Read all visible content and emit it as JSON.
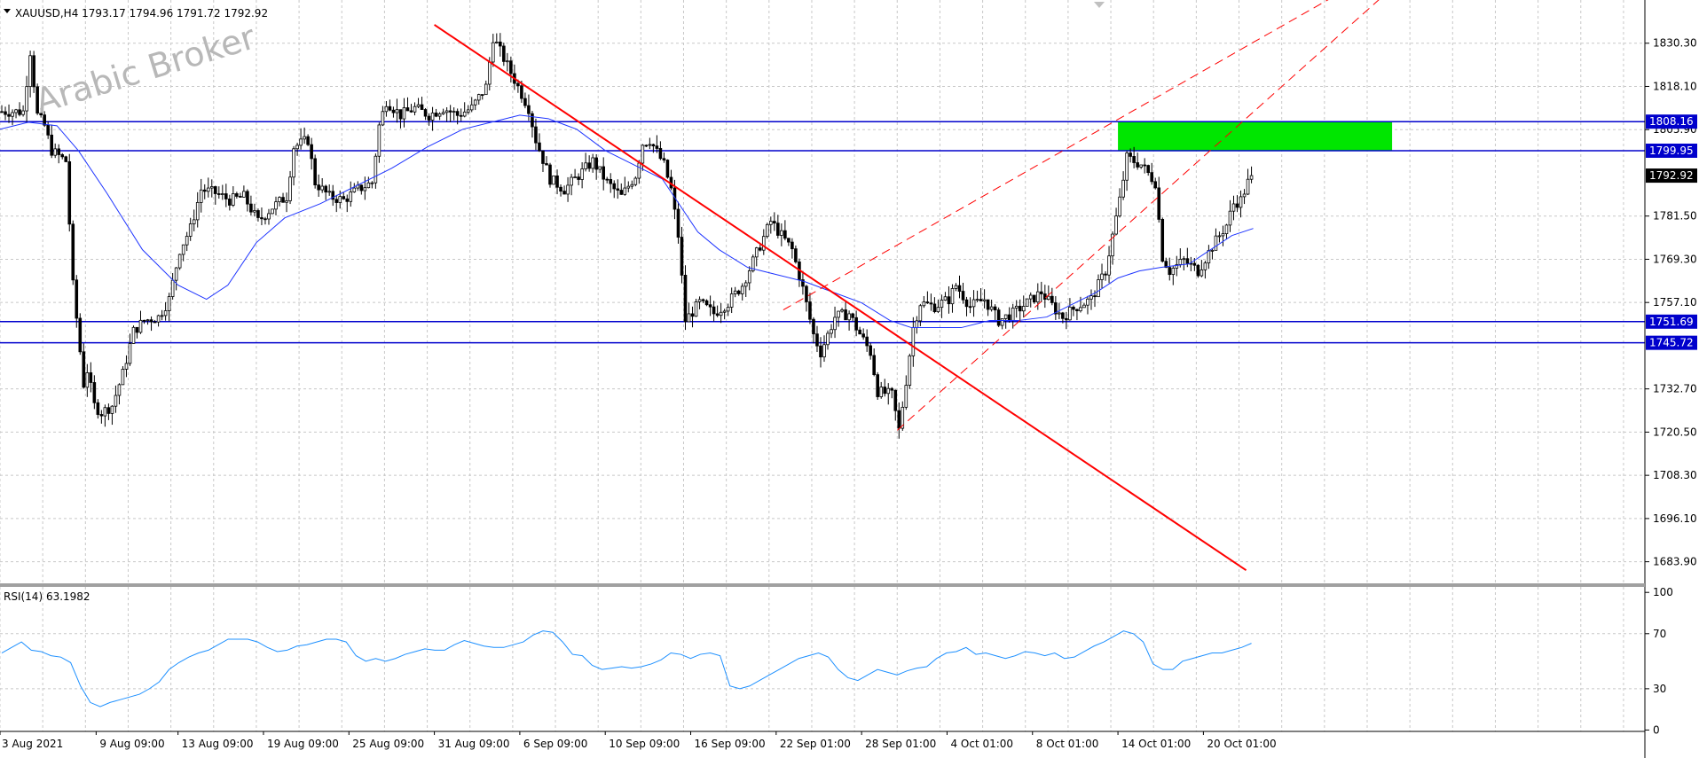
{
  "header": {
    "symbol_line": "XAUUSD,H4  1793.17 1794.96 1791.72 1792.92",
    "rsi_line": "RSI(14) 63.1982"
  },
  "watermark": "Arabic Broker",
  "colors": {
    "background": "#ffffff",
    "grid": "#c8c8c8",
    "candle": "#000000",
    "ma": "#1f35ff",
    "hline": "#0000cc",
    "trend": "#ff0000",
    "zone": "#00e600",
    "rsi": "#1e90ff",
    "label_bg": "#0000cc",
    "label_text": "#ffffff",
    "price_bg": "#000000",
    "price_text": "#ffffff"
  },
  "chart_data": [
    {
      "type": "candlestick",
      "title": "XAUUSD,H4",
      "ylim": [
        1677.8,
        1842.5
      ],
      "y_ticks": [
        "1830.30",
        "1818.10",
        "1805.90",
        "1781.50",
        "1769.30",
        "1757.10",
        "1732.70",
        "1720.50",
        "1708.30",
        "1696.10",
        "1683.90"
      ],
      "x_tick_labels": [
        "3 Aug 2021",
        "9 Aug 09:00",
        "13 Aug 09:00",
        "19 Aug 09:00",
        "25 Aug 09:00",
        "31 Aug 09:00",
        "6 Sep 09:00",
        "10 Sep 09:00",
        "16 Sep 09:00",
        "22 Sep 01:00",
        "28 Sep 01:00",
        "4 Oct 01:00",
        "8 Oct 01:00",
        "14 Oct 01:00",
        "20 Oct 01:00"
      ],
      "x_tick_bars": [
        0,
        27,
        50,
        74,
        98,
        122,
        146,
        170,
        194,
        218,
        242,
        266,
        290,
        314,
        338
      ],
      "bar_count_total": 462,
      "last_bar_index": 351,
      "price_path": [
        [
          0,
          1811
        ],
        [
          6,
          1811
        ],
        [
          8,
          1828
        ],
        [
          10,
          1810
        ],
        [
          12,
          1807
        ],
        [
          14,
          1800
        ],
        [
          18,
          1797
        ],
        [
          20,
          1762
        ],
        [
          23,
          1734
        ],
        [
          24,
          1738
        ],
        [
          26,
          1728
        ],
        [
          28,
          1726
        ],
        [
          31,
          1728
        ],
        [
          34,
          1737
        ],
        [
          37,
          1749
        ],
        [
          40,
          1752
        ],
        [
          44,
          1753
        ],
        [
          47,
          1758
        ],
        [
          50,
          1772
        ],
        [
          53,
          1778
        ],
        [
          56,
          1789
        ],
        [
          60,
          1788
        ],
        [
          64,
          1786
        ],
        [
          68,
          1787
        ],
        [
          72,
          1780
        ],
        [
          76,
          1784
        ],
        [
          80,
          1787
        ],
        [
          82,
          1801
        ],
        [
          86,
          1803
        ],
        [
          88,
          1791
        ],
        [
          92,
          1787
        ],
        [
          96,
          1786
        ],
        [
          100,
          1789
        ],
        [
          104,
          1791
        ],
        [
          106,
          1807
        ],
        [
          108,
          1814
        ],
        [
          112,
          1810
        ],
        [
          116,
          1812
        ],
        [
          120,
          1810
        ],
        [
          124,
          1812
        ],
        [
          128,
          1810
        ],
        [
          132,
          1812
        ],
        [
          136,
          1818
        ],
        [
          138,
          1832
        ],
        [
          141,
          1826
        ],
        [
          145,
          1818
        ],
        [
          148,
          1812
        ],
        [
          150,
          1803
        ],
        [
          154,
          1792
        ],
        [
          158,
          1789
        ],
        [
          162,
          1793
        ],
        [
          166,
          1797
        ],
        [
          170,
          1791
        ],
        [
          174,
          1787
        ],
        [
          178,
          1793
        ],
        [
          180,
          1802
        ],
        [
          182,
          1803
        ],
        [
          186,
          1796
        ],
        [
          188,
          1789
        ],
        [
          190,
          1776
        ],
        [
          192,
          1752
        ],
        [
          196,
          1757
        ],
        [
          200,
          1754
        ],
        [
          204,
          1757
        ],
        [
          208,
          1762
        ],
        [
          212,
          1771
        ],
        [
          216,
          1780
        ],
        [
          219,
          1776
        ],
        [
          222,
          1772
        ],
        [
          225,
          1761
        ],
        [
          228,
          1748
        ],
        [
          230,
          1743
        ],
        [
          234,
          1753
        ],
        [
          238,
          1754
        ],
        [
          240,
          1750
        ],
        [
          244,
          1743
        ],
        [
          246,
          1732
        ],
        [
          250,
          1731
        ],
        [
          252,
          1721
        ],
        [
          254,
          1735
        ],
        [
          256,
          1750
        ],
        [
          258,
          1757
        ],
        [
          262,
          1756
        ],
        [
          266,
          1758
        ],
        [
          268,
          1762
        ],
        [
          272,
          1756
        ],
        [
          276,
          1758
        ],
        [
          280,
          1752
        ],
        [
          284,
          1754
        ],
        [
          288,
          1757
        ],
        [
          292,
          1760
        ],
        [
          296,
          1755
        ],
        [
          298,
          1753
        ],
        [
          302,
          1756
        ],
        [
          306,
          1758
        ],
        [
          308,
          1762
        ],
        [
          310,
          1766
        ],
        [
          314,
          1786
        ],
        [
          316,
          1798
        ],
        [
          320,
          1796
        ],
        [
          324,
          1791
        ],
        [
          326,
          1770
        ],
        [
          328,
          1766
        ],
        [
          332,
          1769
        ],
        [
          336,
          1766
        ],
        [
          340,
          1773
        ],
        [
          344,
          1779
        ],
        [
          346,
          1785
        ],
        [
          348,
          1786
        ],
        [
          350,
          1791
        ],
        [
          351,
          1792.92
        ]
      ],
      "ma_path": [
        [
          0,
          1806
        ],
        [
          8,
          1808
        ],
        [
          16,
          1807
        ],
        [
          22,
          1800
        ],
        [
          30,
          1788
        ],
        [
          40,
          1772
        ],
        [
          50,
          1762
        ],
        [
          58,
          1758
        ],
        [
          64,
          1762
        ],
        [
          72,
          1774
        ],
        [
          80,
          1781
        ],
        [
          90,
          1785
        ],
        [
          100,
          1790
        ],
        [
          110,
          1795
        ],
        [
          120,
          1801
        ],
        [
          130,
          1806
        ],
        [
          138,
          1808
        ],
        [
          146,
          1810
        ],
        [
          154,
          1809
        ],
        [
          162,
          1806
        ],
        [
          170,
          1800
        ],
        [
          180,
          1795
        ],
        [
          186,
          1792
        ],
        [
          190,
          1786
        ],
        [
          196,
          1777
        ],
        [
          202,
          1772
        ],
        [
          210,
          1767
        ],
        [
          218,
          1765
        ],
        [
          226,
          1763
        ],
        [
          234,
          1760
        ],
        [
          242,
          1757
        ],
        [
          250,
          1752
        ],
        [
          256,
          1750
        ],
        [
          262,
          1750
        ],
        [
          270,
          1750
        ],
        [
          278,
          1752
        ],
        [
          286,
          1752
        ],
        [
          294,
          1753
        ],
        [
          302,
          1757
        ],
        [
          308,
          1760
        ],
        [
          314,
          1764
        ],
        [
          320,
          1766
        ],
        [
          326,
          1767
        ],
        [
          334,
          1768
        ],
        [
          340,
          1772
        ],
        [
          346,
          1776
        ],
        [
          352,
          1778
        ]
      ],
      "horizontal_levels": [
        {
          "price": 1808.16,
          "label": "1808.16"
        },
        {
          "price": 1799.95,
          "label": "1799.95"
        },
        {
          "price": 1751.69,
          "label": "1751.69"
        },
        {
          "price": 1745.72,
          "label": "1745.72"
        }
      ],
      "current_price": {
        "price": 1792.92,
        "label": "1792.92"
      },
      "zone": {
        "x_from_bar": 314,
        "x_to_bar": 391,
        "price_from": 1800.0,
        "price_to": 1808.2
      },
      "trend_line": {
        "from": [
          122,
          1835.5
        ],
        "to": [
          350,
          1681.5
        ]
      },
      "channel_lines": [
        {
          "from": [
            252,
            1721.0
          ],
          "to": [
            400,
            1854.0
          ],
          "dashed": true
        },
        {
          "from": [
            220,
            1755.0
          ],
          "to": [
            400,
            1858.0
          ],
          "dashed": true
        }
      ]
    },
    {
      "type": "line",
      "title": "RSI(14) 63.1982",
      "ylim": [
        -1,
        104
      ],
      "y_ticks": [
        "100",
        "70",
        "30",
        "0"
      ],
      "values": [
        56,
        60,
        64,
        58,
        57,
        54,
        53,
        49,
        32,
        20,
        17,
        20,
        22,
        24,
        26,
        30,
        35,
        44,
        49,
        53,
        56,
        58,
        62,
        66,
        66,
        66,
        64,
        60,
        57,
        58,
        61,
        62,
        64,
        66,
        66,
        64,
        54,
        50,
        52,
        50,
        52,
        55,
        57,
        59,
        58,
        58,
        62,
        65,
        63,
        61,
        60,
        60,
        62,
        64,
        69,
        72,
        71,
        64,
        55,
        54,
        47,
        44,
        45,
        46,
        45,
        46,
        48,
        51,
        56,
        55,
        52,
        55,
        56,
        54,
        32,
        30,
        32,
        36,
        40,
        44,
        48,
        52,
        54,
        56,
        53,
        44,
        38,
        36,
        40,
        44,
        42,
        40,
        43,
        45,
        46,
        52,
        56,
        57,
        60,
        55,
        56,
        54,
        52,
        54,
        57,
        56,
        54,
        56,
        52,
        53,
        57,
        61,
        64,
        68,
        72,
        70,
        64,
        48,
        44,
        44,
        50,
        52,
        54,
        56,
        56,
        58,
        60,
        63
      ]
    }
  ]
}
